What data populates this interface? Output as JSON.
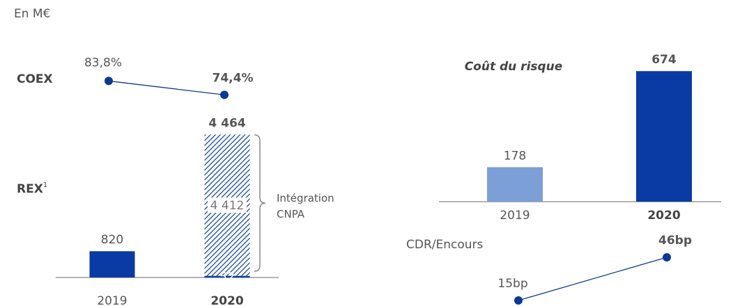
{
  "unit_note": "En M€",
  "chart_data": [
    {
      "type": "line",
      "label": "COEX",
      "categories": [
        "2019",
        "2020"
      ],
      "values": [
        83.8,
        74.4
      ],
      "value_labels": [
        "83,8%",
        "74,4%"
      ],
      "color": "#0b3a94",
      "ylim": [
        60,
        100
      ]
    },
    {
      "type": "stacked_bar",
      "label": "REX",
      "footnote": "1",
      "categories": [
        "2019",
        "2020"
      ],
      "series": [
        {
          "color": "#0a3aa3",
          "values": [
            820,
            52
          ],
          "value_labels": [
            "820",
            "52"
          ]
        },
        {
          "name": "Intégration CNPA",
          "color": "#0a3aa3",
          "pattern": "hatch",
          "values": [
            null,
            4412
          ],
          "value_labels": [
            null,
            "4 412"
          ]
        }
      ],
      "total_label": {
        "category": 1,
        "value": 4464,
        "label": "4 464"
      },
      "ylim": [
        0,
        4800
      ]
    },
    {
      "type": "bar",
      "title": "Coût du risque",
      "categories": [
        "2019",
        "2020"
      ],
      "values": [
        178,
        674
      ],
      "colors": [
        "#7b9fd6",
        "#0a3aa3"
      ],
      "ylim": [
        0,
        700
      ]
    },
    {
      "type": "line",
      "title": "CDR/Encours",
      "categories": [
        "2019",
        "2020"
      ],
      "values": [
        15,
        46
      ],
      "value_labels": [
        "15bp",
        "46bp"
      ],
      "color": "#0b3a94",
      "ylim": [
        10,
        50
      ]
    }
  ]
}
